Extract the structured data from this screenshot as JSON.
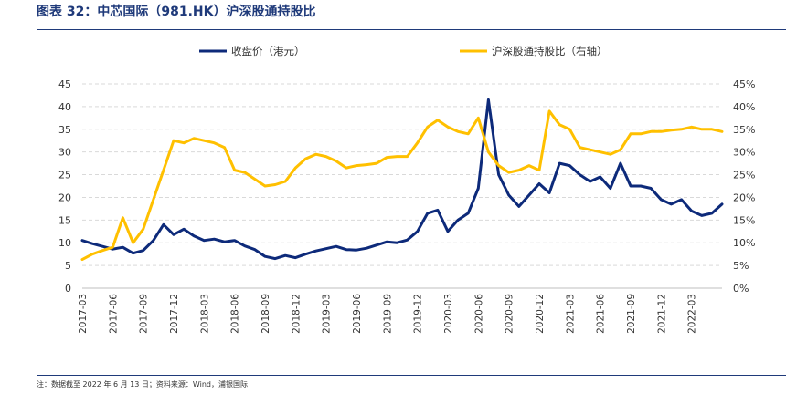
{
  "figure": {
    "title": "图表 32：中芯国际（981.HK）沪深股通持股比",
    "note": "注：数据截至 2022 年 6 月 13 日；资料来源：Wind，浦银国际"
  },
  "colors": {
    "series_price": "#0d2a7a",
    "series_holding": "#ffc000",
    "rule": "#1f3a7a",
    "grid": "#d9d9d9"
  },
  "chart_data": {
    "type": "line",
    "title": "",
    "xlabel": "",
    "ylabel": "",
    "x_tick_labels": [
      "2017-03",
      "2017-06",
      "2017-09",
      "2017-12",
      "2018-03",
      "2018-06",
      "2018-09",
      "2018-12",
      "2019-03",
      "2019-06",
      "2019-09",
      "2019-12",
      "2020-03",
      "2020-06",
      "2020-09",
      "2020-12",
      "2021-03",
      "2021-06",
      "2021-09",
      "2021-12",
      "2022-03"
    ],
    "x_range": [
      "2017-03",
      "2022-06"
    ],
    "y_left": {
      "ticks": [
        "0",
        "5",
        "10",
        "15",
        "20",
        "25",
        "30",
        "35",
        "40",
        "45"
      ],
      "ylim": [
        0,
        45
      ]
    },
    "y_right": {
      "ticks": [
        "0%",
        "5%",
        "10%",
        "15%",
        "20%",
        "25%",
        "30%",
        "35%",
        "40%",
        "45%"
      ],
      "ylim": [
        0,
        45
      ]
    },
    "grid": "horizontal-dashed",
    "legend_position": "top",
    "series": [
      {
        "name": "收盘价（港元）",
        "axis": "left",
        "color": "#0d2a7a",
        "points": [
          [
            "2017-03",
            10.5
          ],
          [
            "2017-04",
            9.8
          ],
          [
            "2017-05",
            9.2
          ],
          [
            "2017-06",
            8.6
          ],
          [
            "2017-07",
            9.0
          ],
          [
            "2017-08",
            7.7
          ],
          [
            "2017-09",
            8.3
          ],
          [
            "2017-10",
            10.5
          ],
          [
            "2017-11",
            14.0
          ],
          [
            "2017-12",
            11.8
          ],
          [
            "2018-01",
            13.0
          ],
          [
            "2018-02",
            11.5
          ],
          [
            "2018-03",
            10.5
          ],
          [
            "2018-04",
            10.8
          ],
          [
            "2018-05",
            10.2
          ],
          [
            "2018-06",
            10.5
          ],
          [
            "2018-07",
            9.3
          ],
          [
            "2018-08",
            8.5
          ],
          [
            "2018-09",
            7.0
          ],
          [
            "2018-10",
            6.5
          ],
          [
            "2018-11",
            7.2
          ],
          [
            "2018-12",
            6.7
          ],
          [
            "2019-01",
            7.5
          ],
          [
            "2019-02",
            8.2
          ],
          [
            "2019-03",
            8.7
          ],
          [
            "2019-04",
            9.2
          ],
          [
            "2019-05",
            8.5
          ],
          [
            "2019-06",
            8.4
          ],
          [
            "2019-07",
            8.8
          ],
          [
            "2019-08",
            9.5
          ],
          [
            "2019-09",
            10.2
          ],
          [
            "2019-10",
            10.0
          ],
          [
            "2019-11",
            10.6
          ],
          [
            "2019-12",
            12.5
          ],
          [
            "2020-01",
            16.5
          ],
          [
            "2020-02",
            17.2
          ],
          [
            "2020-03",
            12.5
          ],
          [
            "2020-04",
            15.0
          ],
          [
            "2020-05",
            16.5
          ],
          [
            "2020-06",
            22.0
          ],
          [
            "2020-07",
            41.5
          ],
          [
            "2020-08",
            25.0
          ],
          [
            "2020-09",
            20.5
          ],
          [
            "2020-10",
            18.0
          ],
          [
            "2020-11",
            20.5
          ],
          [
            "2020-12",
            23.0
          ],
          [
            "2021-01",
            21.0
          ],
          [
            "2021-02",
            27.5
          ],
          [
            "2021-03",
            27.0
          ],
          [
            "2021-04",
            25.0
          ],
          [
            "2021-05",
            23.5
          ],
          [
            "2021-06",
            24.5
          ],
          [
            "2021-07",
            22.0
          ],
          [
            "2021-08",
            27.5
          ],
          [
            "2021-09",
            22.5
          ],
          [
            "2021-10",
            22.5
          ],
          [
            "2021-11",
            22.0
          ],
          [
            "2021-12",
            19.5
          ],
          [
            "2022-01",
            18.5
          ],
          [
            "2022-02",
            19.5
          ],
          [
            "2022-03",
            17.0
          ],
          [
            "2022-04",
            16.0
          ],
          [
            "2022-05",
            16.5
          ],
          [
            "2022-06",
            18.5
          ]
        ]
      },
      {
        "name": "沪深股通持股比（右轴）",
        "axis": "right",
        "color": "#ffc000",
        "points": [
          [
            "2017-03",
            6.3
          ],
          [
            "2017-04",
            7.5
          ],
          [
            "2017-05",
            8.3
          ],
          [
            "2017-06",
            9.0
          ],
          [
            "2017-07",
            15.5
          ],
          [
            "2017-08",
            10.0
          ],
          [
            "2017-09",
            13.0
          ],
          [
            "2017-10",
            19.5
          ],
          [
            "2017-11",
            26.0
          ],
          [
            "2017-12",
            32.5
          ],
          [
            "2018-01",
            32.0
          ],
          [
            "2018-02",
            33.0
          ],
          [
            "2018-03",
            32.5
          ],
          [
            "2018-04",
            32.0
          ],
          [
            "2018-05",
            31.0
          ],
          [
            "2018-06",
            26.0
          ],
          [
            "2018-07",
            25.5
          ],
          [
            "2018-08",
            24.0
          ],
          [
            "2018-09",
            22.5
          ],
          [
            "2018-10",
            22.8
          ],
          [
            "2018-11",
            23.5
          ],
          [
            "2018-12",
            26.5
          ],
          [
            "2019-01",
            28.5
          ],
          [
            "2019-02",
            29.5
          ],
          [
            "2019-03",
            29.0
          ],
          [
            "2019-04",
            28.0
          ],
          [
            "2019-05",
            26.5
          ],
          [
            "2019-06",
            27.0
          ],
          [
            "2019-07",
            27.2
          ],
          [
            "2019-08",
            27.5
          ],
          [
            "2019-09",
            28.8
          ],
          [
            "2019-10",
            29.0
          ],
          [
            "2019-11",
            29.0
          ],
          [
            "2019-12",
            32.0
          ],
          [
            "2020-01",
            35.5
          ],
          [
            "2020-02",
            37.0
          ],
          [
            "2020-03",
            35.5
          ],
          [
            "2020-04",
            34.5
          ],
          [
            "2020-05",
            34.0
          ],
          [
            "2020-06",
            37.5
          ],
          [
            "2020-07",
            30.0
          ],
          [
            "2020-08",
            27.0
          ],
          [
            "2020-09",
            25.5
          ],
          [
            "2020-10",
            26.0
          ],
          [
            "2020-11",
            27.0
          ],
          [
            "2020-12",
            26.0
          ],
          [
            "2021-01",
            39.0
          ],
          [
            "2021-02",
            36.0
          ],
          [
            "2021-03",
            35.0
          ],
          [
            "2021-04",
            31.0
          ],
          [
            "2021-05",
            30.5
          ],
          [
            "2021-06",
            30.0
          ],
          [
            "2021-07",
            29.5
          ],
          [
            "2021-08",
            30.5
          ],
          [
            "2021-09",
            34.0
          ],
          [
            "2021-10",
            34.0
          ],
          [
            "2021-11",
            34.5
          ],
          [
            "2021-12",
            34.5
          ],
          [
            "2022-01",
            34.8
          ],
          [
            "2022-02",
            35.0
          ],
          [
            "2022-03",
            35.5
          ],
          [
            "2022-04",
            35.0
          ],
          [
            "2022-05",
            35.0
          ],
          [
            "2022-06",
            34.5
          ]
        ]
      }
    ]
  }
}
